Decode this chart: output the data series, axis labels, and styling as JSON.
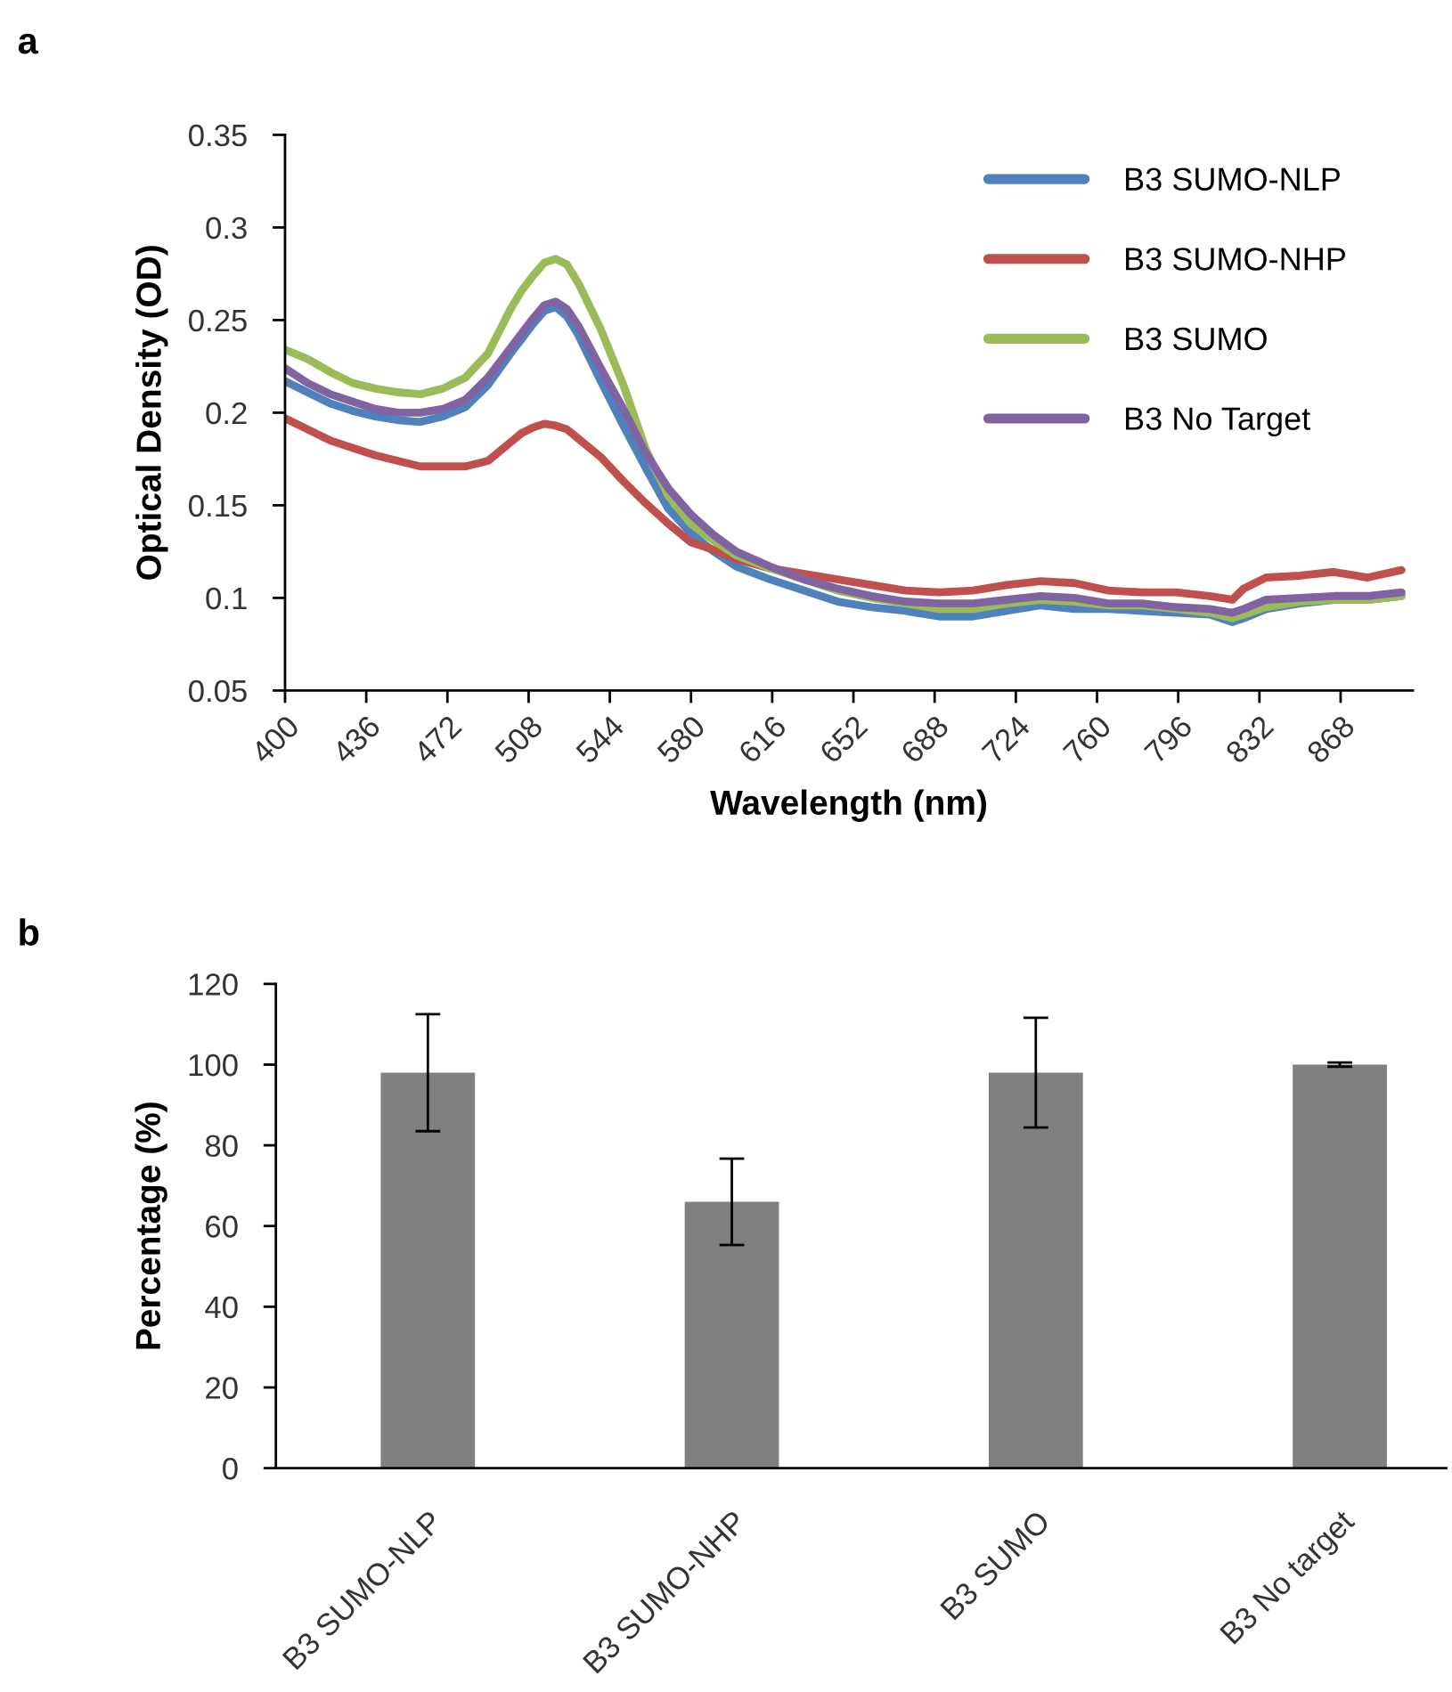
{
  "chart_data": [
    {
      "type": "line",
      "title": "a",
      "xlabel": "Wavelength (nm)",
      "ylabel": "Optical Density (OD)",
      "x": [
        400,
        410,
        420,
        430,
        440,
        450,
        460,
        470,
        480,
        490,
        500,
        505,
        510,
        515,
        520,
        525,
        530,
        540,
        550,
        560,
        570,
        580,
        590,
        600,
        615,
        630,
        645,
        660,
        675,
        690,
        705,
        720,
        735,
        750,
        765,
        780,
        795,
        810,
        820,
        825,
        835,
        850,
        865,
        880,
        895
      ],
      "series": [
        {
          "name": "B3 SUMO-NLP",
          "color": "#4f81bd",
          "values": [
            0.217,
            0.211,
            0.205,
            0.201,
            0.198,
            0.196,
            0.195,
            0.198,
            0.203,
            0.215,
            0.232,
            0.24,
            0.248,
            0.255,
            0.257,
            0.252,
            0.242,
            0.217,
            0.193,
            0.17,
            0.148,
            0.135,
            0.125,
            0.117,
            0.11,
            0.104,
            0.098,
            0.095,
            0.093,
            0.09,
            0.09,
            0.093,
            0.096,
            0.094,
            0.094,
            0.093,
            0.092,
            0.091,
            0.087,
            0.089,
            0.094,
            0.097,
            0.099,
            0.099,
            0.101
          ]
        },
        {
          "name": "B3 SUMO-NHP",
          "color": "#c0504d",
          "values": [
            0.197,
            0.191,
            0.185,
            0.181,
            0.177,
            0.174,
            0.171,
            0.171,
            0.171,
            0.174,
            0.184,
            0.189,
            0.192,
            0.194,
            0.193,
            0.191,
            0.186,
            0.176,
            0.163,
            0.151,
            0.14,
            0.13,
            0.126,
            0.121,
            0.116,
            0.113,
            0.11,
            0.107,
            0.104,
            0.103,
            0.104,
            0.107,
            0.109,
            0.108,
            0.104,
            0.103,
            0.103,
            0.101,
            0.099,
            0.105,
            0.111,
            0.112,
            0.114,
            0.111,
            0.115
          ]
        },
        {
          "name": "B3 SUMO",
          "color": "#9bbb59",
          "values": [
            0.234,
            0.229,
            0.222,
            0.216,
            0.213,
            0.211,
            0.21,
            0.213,
            0.219,
            0.232,
            0.256,
            0.266,
            0.274,
            0.281,
            0.283,
            0.28,
            0.27,
            0.245,
            0.215,
            0.18,
            0.155,
            0.14,
            0.131,
            0.123,
            0.116,
            0.11,
            0.104,
            0.1,
            0.097,
            0.094,
            0.094,
            0.097,
            0.099,
            0.098,
            0.096,
            0.096,
            0.094,
            0.092,
            0.089,
            0.091,
            0.095,
            0.098,
            0.099,
            0.099,
            0.101
          ]
        },
        {
          "name": "B3 No Target",
          "color": "#8064a2",
          "values": [
            0.224,
            0.216,
            0.21,
            0.206,
            0.202,
            0.2,
            0.2,
            0.202,
            0.207,
            0.219,
            0.235,
            0.243,
            0.251,
            0.258,
            0.26,
            0.256,
            0.247,
            0.224,
            0.202,
            0.178,
            0.159,
            0.145,
            0.134,
            0.125,
            0.117,
            0.11,
            0.105,
            0.101,
            0.098,
            0.097,
            0.097,
            0.099,
            0.101,
            0.1,
            0.097,
            0.097,
            0.095,
            0.094,
            0.092,
            0.094,
            0.099,
            0.1,
            0.101,
            0.101,
            0.103
          ]
        }
      ],
      "xlim": [
        400,
        900
      ],
      "ylim": [
        0.05,
        0.35
      ],
      "xticks": [
        400,
        436,
        472,
        508,
        544,
        580,
        616,
        652,
        688,
        724,
        760,
        796,
        832,
        868
      ],
      "yticks": [
        0.05,
        0.1,
        0.15,
        0.2,
        0.25,
        0.3,
        0.35
      ],
      "legend": "top right"
    },
    {
      "type": "bar",
      "title": "b",
      "ylabel": "Percentage (%)",
      "categories": [
        "B3 SUMO-NLP",
        "B3 SUMO-NHP",
        "B3 SUMO",
        "B3 No target"
      ],
      "values": [
        98,
        66,
        98,
        100
      ],
      "errors": [
        14.5,
        10.7,
        13.6,
        0.5
      ],
      "color": "#808080",
      "ylim": [
        0,
        120
      ],
      "yticks": [
        0,
        20,
        40,
        60,
        80,
        100,
        120
      ]
    }
  ]
}
